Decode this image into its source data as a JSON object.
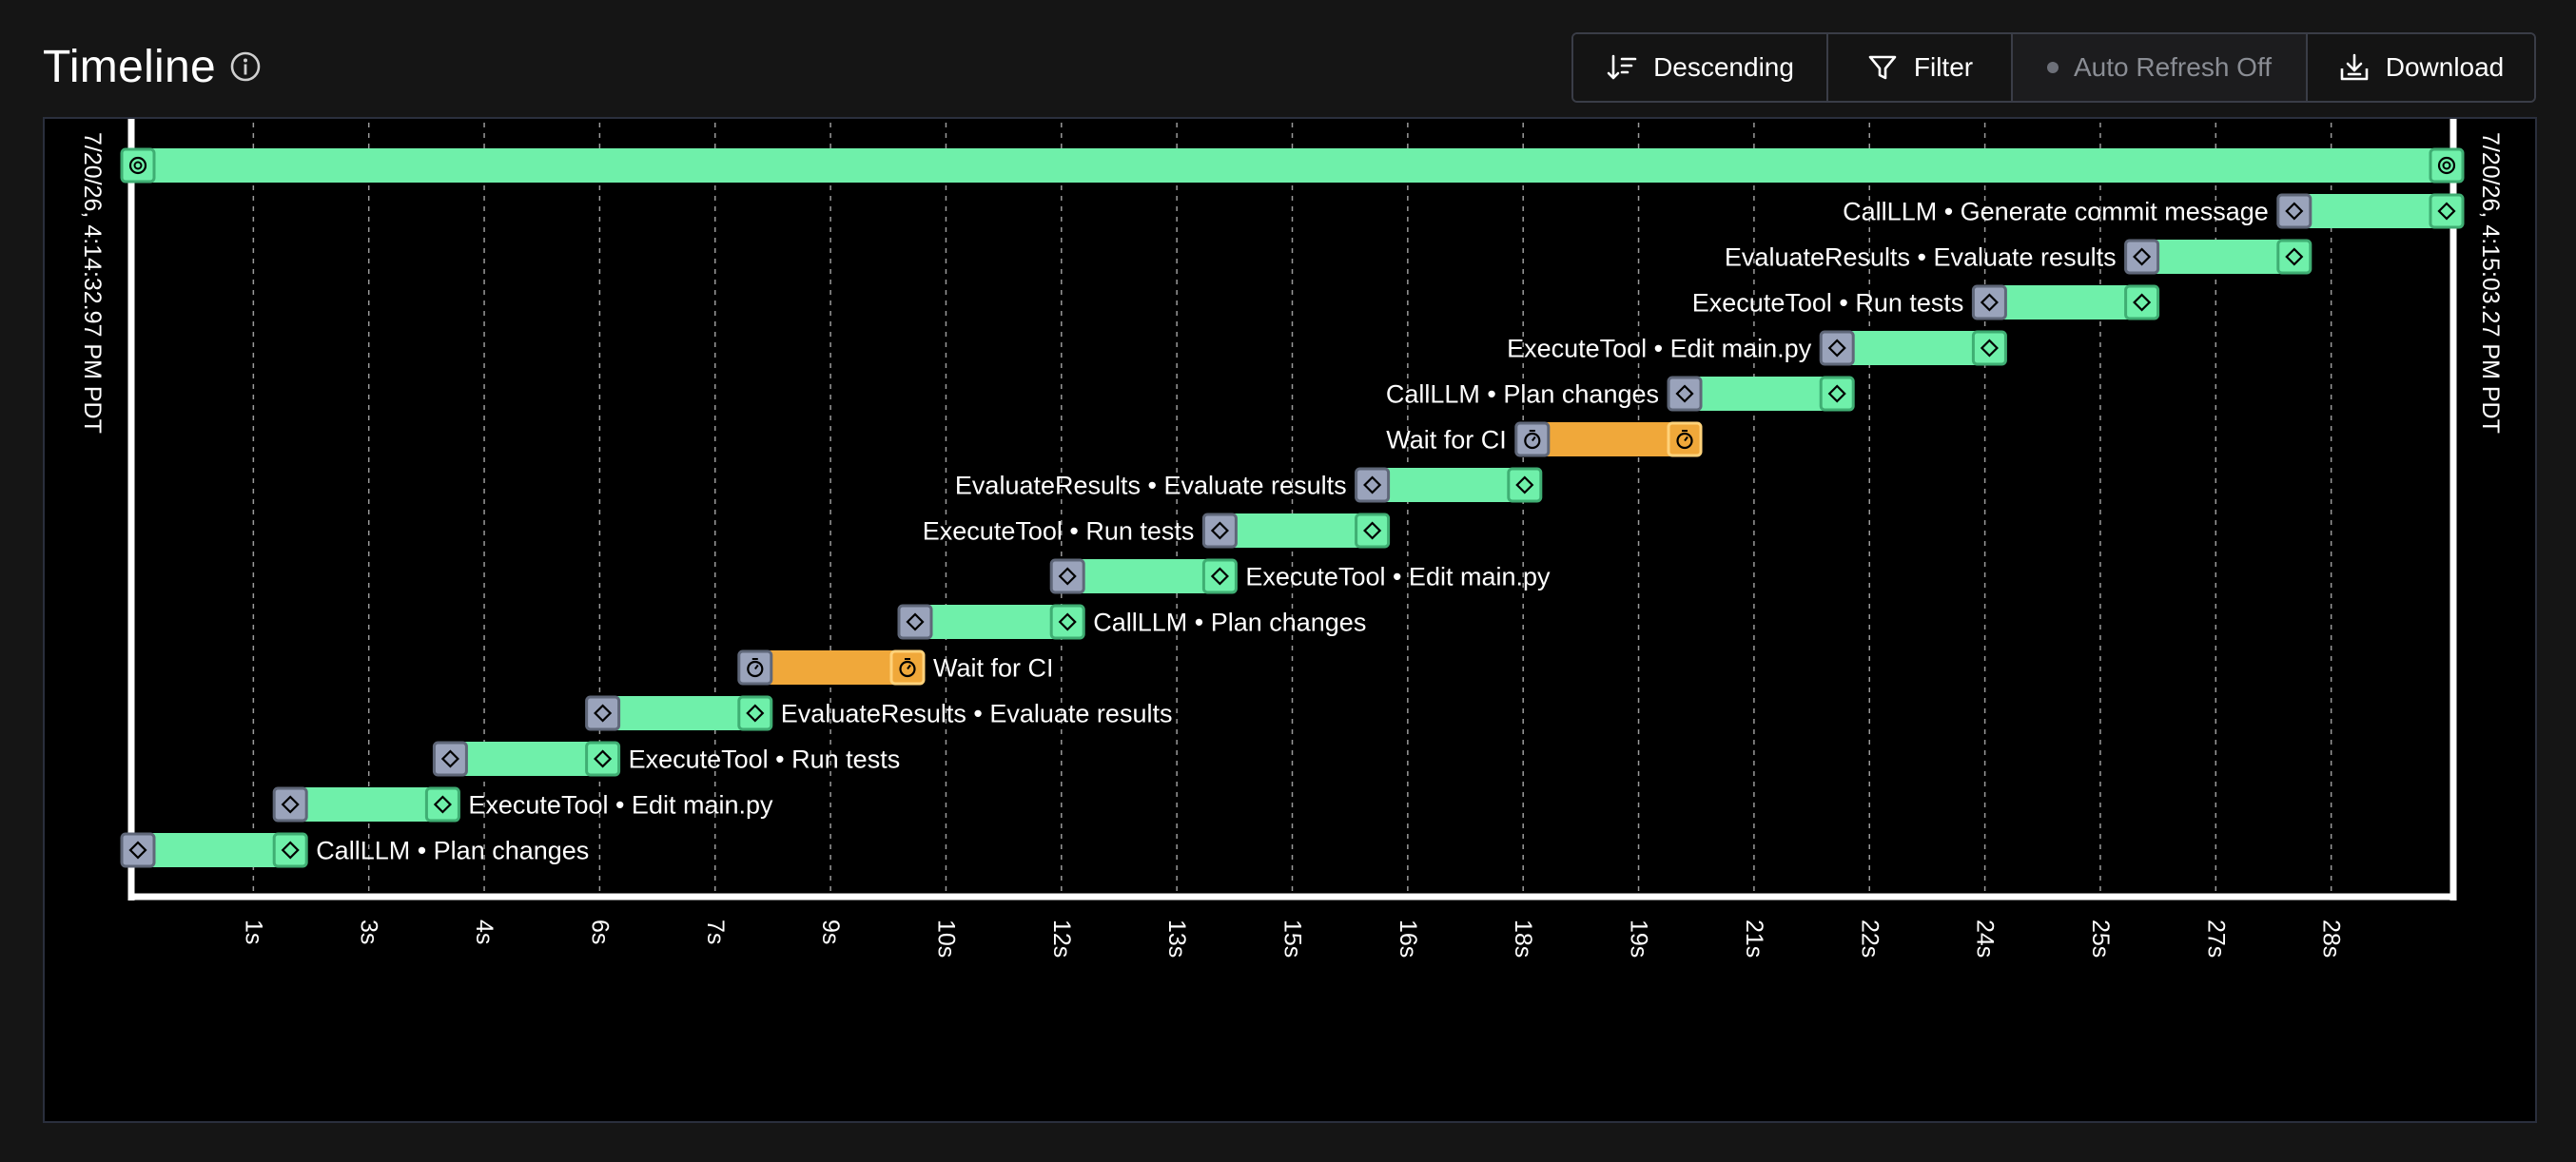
{
  "header": {
    "title": "Timeline",
    "info_icon": "info-circle-icon"
  },
  "toolbar": {
    "descending_label": "Descending",
    "descending_icon": "sort-descending-icon",
    "filter_label": "Filter",
    "filter_icon": "filter-funnel-icon",
    "auto_refresh_label": "Auto Refresh Off",
    "auto_refresh_icon": "status-dot-icon",
    "download_label": "Download",
    "download_icon": "download-tray-icon"
  },
  "colors": {
    "bar_green": "#6ff0aa",
    "bar_orange": "#f0a83a",
    "start_marker": "#9aa3bb",
    "frame": "#ffffff",
    "grid": "#9a9a9a"
  },
  "timeline": {
    "start_timestamp": "7/20/26, 4:14:32.97 PM PDT",
    "end_timestamp": "7/20/26, 4:15:03.27 PM PDT",
    "root_span": {
      "start": 0,
      "end": 30.3,
      "icon": "workflow-icon"
    },
    "tick_labels": [
      "1s",
      "3s",
      "4s",
      "6s",
      "7s",
      "9s",
      "10s",
      "12s",
      "13s",
      "15s",
      "16s",
      "18s",
      "19s",
      "21s",
      "22s",
      "24s",
      "25s",
      "27s",
      "28s"
    ],
    "spans": [
      {
        "label": "CallLLM • Generate commit message",
        "start": 28.3,
        "end": 30.3,
        "kind": "activity",
        "label_side": "left"
      },
      {
        "label": "EvaluateResults • Evaluate results",
        "start": 26.3,
        "end": 28.3,
        "kind": "activity",
        "label_side": "left"
      },
      {
        "label": "ExecuteTool • Run tests",
        "start": 24.3,
        "end": 26.3,
        "kind": "activity",
        "label_side": "left"
      },
      {
        "label": "ExecuteTool • Edit main.py",
        "start": 22.3,
        "end": 24.3,
        "kind": "activity",
        "label_side": "left"
      },
      {
        "label": "CallLLM • Plan changes",
        "start": 20.3,
        "end": 22.3,
        "kind": "activity",
        "label_side": "left"
      },
      {
        "label": "Wait for CI",
        "start": 18.3,
        "end": 20.3,
        "kind": "timer",
        "label_side": "left"
      },
      {
        "label": "EvaluateResults • Evaluate results",
        "start": 16.2,
        "end": 18.2,
        "kind": "activity",
        "label_side": "left"
      },
      {
        "label": "ExecuteTool • Run tests",
        "start": 14.2,
        "end": 16.2,
        "kind": "activity",
        "label_side": "left"
      },
      {
        "label": "ExecuteTool • Edit main.py",
        "start": 12.2,
        "end": 14.2,
        "kind": "activity",
        "label_side": "right"
      },
      {
        "label": "CallLLM • Plan changes",
        "start": 10.2,
        "end": 12.2,
        "kind": "activity",
        "label_side": "right"
      },
      {
        "label": "Wait for CI",
        "start": 8.1,
        "end": 10.1,
        "kind": "timer",
        "label_side": "right"
      },
      {
        "label": "EvaluateResults • Evaluate results",
        "start": 6.1,
        "end": 8.1,
        "kind": "activity",
        "label_side": "right"
      },
      {
        "label": "ExecuteTool • Run tests",
        "start": 4.1,
        "end": 6.1,
        "kind": "activity",
        "label_side": "right"
      },
      {
        "label": "ExecuteTool • Edit main.py",
        "start": 2.0,
        "end": 4.0,
        "kind": "activity",
        "label_side": "right"
      },
      {
        "label": "CallLLM • Plan changes",
        "start": 0.0,
        "end": 2.0,
        "kind": "activity",
        "label_side": "right"
      }
    ]
  }
}
